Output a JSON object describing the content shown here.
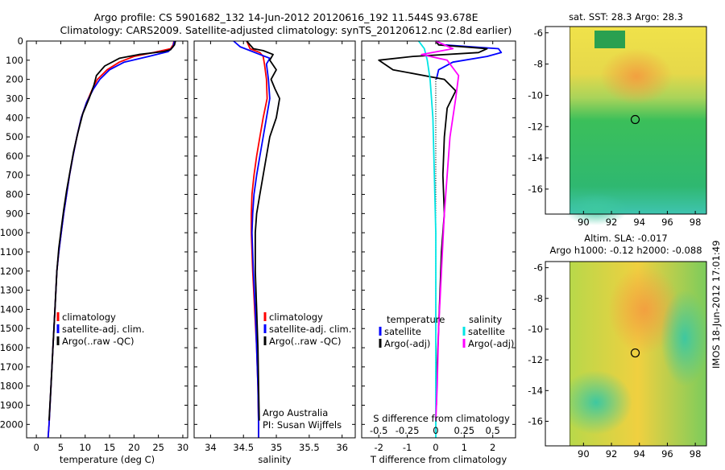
{
  "title_line1": "Argo profile: CS 5901682_132 14-Jun-2012 20120616_192 11.544S 93.678E",
  "title_line2": "Climatology: CARS2009. Satellite-adjusted climatology: synTS_20120612.nc (2.8d earlier)",
  "footer_vertical": "IMOS 18-Jun-2012 17:01:49",
  "colors": {
    "climatology": "#ff0000",
    "satellite": "#0000ff",
    "argo": "#000000",
    "sat_salinity": "#00e5e5",
    "argo_adj_salinity": "#ff00ff"
  },
  "chart_data": [
    {
      "type": "line",
      "xlabel": "temperature (deg C)",
      "xlim": [
        -2,
        31
      ],
      "xticks": [
        0,
        5,
        10,
        15,
        20,
        25,
        30
      ],
      "ylim": [
        2070,
        0
      ],
      "yticks": [
        0,
        100,
        200,
        300,
        400,
        500,
        600,
        700,
        800,
        900,
        1000,
        1100,
        1200,
        1300,
        1400,
        1500,
        1600,
        1700,
        1800,
        1900,
        2000
      ],
      "legend": [
        "climatology",
        "satellite-adj. clim.",
        "Argo(..raw -QC)"
      ],
      "series": [
        {
          "name": "climatology",
          "color": "#ff0000",
          "points": [
            [
              28.2,
              0
            ],
            [
              28.0,
              20
            ],
            [
              27.5,
              40
            ],
            [
              24,
              60
            ],
            [
              20,
              80
            ],
            [
              17,
              110
            ],
            [
              14.5,
              150
            ],
            [
              12.5,
              200
            ],
            [
              11.5,
              250
            ],
            [
              10.3,
              320
            ],
            [
              9.2,
              400
            ],
            [
              8.3,
              500
            ],
            [
              7.5,
              600
            ],
            [
              6.8,
              700
            ],
            [
              6.2,
              800
            ],
            [
              5.6,
              900
            ],
            [
              5.1,
              1000
            ],
            [
              4.6,
              1100
            ],
            [
              4.2,
              1200
            ],
            [
              3.8,
              1400
            ],
            [
              3.4,
              1600
            ],
            [
              3.0,
              1800
            ],
            [
              2.6,
              2000
            ],
            [
              2.4,
              2070
            ]
          ]
        },
        {
          "name": "satellite-adj. clim.",
          "color": "#0000ff",
          "points": [
            [
              28.3,
              0
            ],
            [
              28.0,
              30
            ],
            [
              27,
              55
            ],
            [
              23,
              80
            ],
            [
              18,
              110
            ],
            [
              15,
              150
            ],
            [
              13,
              200
            ],
            [
              11.7,
              250
            ],
            [
              10.3,
              320
            ],
            [
              9.2,
              400
            ],
            [
              8.3,
              500
            ],
            [
              7.5,
              600
            ],
            [
              6.8,
              700
            ],
            [
              6.2,
              800
            ],
            [
              5.6,
              900
            ],
            [
              5.1,
              1000
            ],
            [
              4.6,
              1100
            ],
            [
              4.2,
              1200
            ],
            [
              3.8,
              1400
            ],
            [
              3.4,
              1600
            ],
            [
              3.0,
              1800
            ],
            [
              2.6,
              2000
            ],
            [
              2.4,
              2070
            ]
          ]
        },
        {
          "name": "Argo(..raw -QC)",
          "color": "#000000",
          "points": [
            [
              28.5,
              0
            ],
            [
              28.3,
              20
            ],
            [
              27.5,
              45
            ],
            [
              26,
              55
            ],
            [
              21,
              70
            ],
            [
              17,
              90
            ],
            [
              14,
              130
            ],
            [
              12.3,
              180
            ],
            [
              11.8,
              230
            ],
            [
              10.8,
              300
            ],
            [
              9.5,
              380
            ],
            [
              8.5,
              480
            ],
            [
              7.6,
              580
            ],
            [
              6.9,
              680
            ],
            [
              6.2,
              780
            ],
            [
              5.6,
              880
            ],
            [
              5.1,
              980
            ],
            [
              4.6,
              1080
            ],
            [
              4.2,
              1200
            ],
            [
              3.8,
              1400
            ],
            [
              3.4,
              1600
            ],
            [
              3.0,
              1800
            ],
            [
              2.6,
              1980
            ]
          ]
        }
      ]
    },
    {
      "type": "line",
      "xlabel": "salinity",
      "xlim": [
        33.75,
        36.2
      ],
      "xticks": [
        34,
        34.5,
        35,
        35.5,
        36
      ],
      "ylim": [
        2070,
        0
      ],
      "legend": [
        "climatology",
        "satellite-adj. clim.",
        "Argo(..raw -QC)"
      ],
      "annotations": [
        "Argo Australia",
        "PI: Susan Wijffels"
      ],
      "series": [
        {
          "name": "climatology",
          "color": "#ff0000",
          "points": [
            [
              34.55,
              0
            ],
            [
              34.6,
              40
            ],
            [
              34.75,
              60
            ],
            [
              34.8,
              80
            ],
            [
              34.82,
              120
            ],
            [
              34.85,
              200
            ],
            [
              34.86,
              300
            ],
            [
              34.8,
              400
            ],
            [
              34.75,
              500
            ],
            [
              34.7,
              600
            ],
            [
              34.66,
              700
            ],
            [
              34.63,
              800
            ],
            [
              34.62,
              900
            ],
            [
              34.62,
              1000
            ],
            [
              34.64,
              1200
            ],
            [
              34.67,
              1400
            ],
            [
              34.7,
              1600
            ],
            [
              34.72,
              1800
            ],
            [
              34.73,
              2000
            ],
            [
              34.73,
              2070
            ]
          ]
        },
        {
          "name": "satellite-adj. clim.",
          "color": "#0000ff",
          "points": [
            [
              34.35,
              0
            ],
            [
              34.45,
              30
            ],
            [
              34.6,
              50
            ],
            [
              34.75,
              70
            ],
            [
              34.9,
              90
            ],
            [
              34.85,
              120
            ],
            [
              34.88,
              200
            ],
            [
              34.9,
              300
            ],
            [
              34.85,
              400
            ],
            [
              34.8,
              500
            ],
            [
              34.75,
              600
            ],
            [
              34.7,
              700
            ],
            [
              34.66,
              800
            ],
            [
              34.64,
              900
            ],
            [
              34.63,
              1000
            ],
            [
              34.65,
              1200
            ],
            [
              34.68,
              1400
            ],
            [
              34.7,
              1600
            ],
            [
              34.72,
              1800
            ],
            [
              34.73,
              2000
            ],
            [
              34.73,
              2070
            ]
          ]
        },
        {
          "name": "Argo(..raw -QC)",
          "color": "#000000",
          "points": [
            [
              34.55,
              0
            ],
            [
              34.65,
              40
            ],
            [
              34.8,
              50
            ],
            [
              34.95,
              70
            ],
            [
              34.9,
              100
            ],
            [
              35.0,
              150
            ],
            [
              34.92,
              200
            ],
            [
              34.98,
              250
            ],
            [
              35.05,
              300
            ],
            [
              35.0,
              400
            ],
            [
              34.9,
              500
            ],
            [
              34.85,
              600
            ],
            [
              34.8,
              700
            ],
            [
              34.75,
              800
            ],
            [
              34.7,
              900
            ],
            [
              34.68,
              1000
            ],
            [
              34.68,
              1200
            ],
            [
              34.7,
              1400
            ],
            [
              34.72,
              1600
            ],
            [
              34.73,
              1800
            ],
            [
              34.74,
              1980
            ]
          ]
        }
      ]
    },
    {
      "type": "line",
      "xlabel": "T difference from climatology",
      "xlabel_top": "S difference from climatology",
      "xlim": [
        -2.6,
        2.8
      ],
      "xticks": [
        -2,
        -1,
        0,
        1,
        2
      ],
      "s_ticks_labels": [
        "-0.5",
        "-0.25",
        "0",
        "0.25",
        "0.5"
      ],
      "s_ticks_positions": [
        -2,
        -1,
        0,
        1,
        2
      ],
      "ylim": [
        2070,
        0
      ],
      "legend_groups": [
        "temperature",
        "salinity"
      ],
      "legend": [
        "satellite",
        "Argo(-adj)",
        "satellite",
        "Argo(-adj)"
      ],
      "series": [
        {
          "name": "satellite",
          "group": "temperature",
          "color": "#0000ff",
          "points": [
            [
              0,
              0
            ],
            [
              0.3,
              20
            ],
            [
              2.2,
              40
            ],
            [
              2.3,
              60
            ],
            [
              1.8,
              80
            ],
            [
              0.6,
              110
            ],
            [
              0.1,
              150
            ],
            [
              0.02,
              200
            ]
          ]
        },
        {
          "name": "Argo(-adj)",
          "group": "temperature",
          "color": "#000000",
          "points": [
            [
              0,
              0
            ],
            [
              0.1,
              20
            ],
            [
              1.8,
              40
            ],
            [
              1.5,
              60
            ],
            [
              -0.8,
              80
            ],
            [
              -2.0,
              100
            ],
            [
              -1.5,
              150
            ],
            [
              0.3,
              200
            ],
            [
              0.7,
              260
            ],
            [
              0.4,
              350
            ],
            [
              0.3,
              500
            ],
            [
              0.25,
              700
            ],
            [
              0.3,
              900
            ],
            [
              0.2,
              1100
            ],
            [
              0.15,
              1300
            ],
            [
              0.1,
              1500
            ],
            [
              0.05,
              1700
            ],
            [
              0.02,
              1900
            ]
          ]
        },
        {
          "name": "satellite",
          "group": "salinity",
          "color": "#00e5e5",
          "points": [
            [
              -0.6,
              0
            ],
            [
              -0.4,
              40
            ],
            [
              -0.3,
              100
            ],
            [
              -0.2,
              200
            ],
            [
              -0.1,
              400
            ],
            [
              -0.05,
              700
            ],
            [
              0,
              1000
            ],
            [
              0,
              1500
            ],
            [
              0,
              2070
            ]
          ]
        },
        {
          "name": "Argo(-adj)",
          "group": "salinity",
          "color": "#ff00ff",
          "points": [
            [
              0,
              0
            ],
            [
              0.6,
              40
            ],
            [
              -0.5,
              70
            ],
            [
              0.4,
              100
            ],
            [
              0.8,
              180
            ],
            [
              0.7,
              300
            ],
            [
              0.5,
              500
            ],
            [
              0.4,
              700
            ],
            [
              0.3,
              900
            ],
            [
              0.2,
              1200
            ],
            [
              0.1,
              1500
            ],
            [
              0.05,
              1800
            ],
            [
              0,
              1980
            ]
          ]
        }
      ]
    },
    {
      "type": "heatmap",
      "title": "sat. SST: 28.3 Argo: 28.3",
      "xticks": [
        90,
        92,
        94,
        96,
        98
      ],
      "yticks": [
        -6,
        -8,
        -10,
        -12,
        -14,
        -16
      ],
      "xlim": [
        89,
        98.8
      ],
      "ylim": [
        -17.6,
        -5.6
      ],
      "marker": [
        93.7,
        -11.55
      ]
    },
    {
      "type": "heatmap",
      "title": "Altim. SLA: -0.017",
      "subtitle": "Argo h1000: -0.12 h2000: -0.088",
      "xticks": [
        90,
        92,
        94,
        96,
        98
      ],
      "yticks": [
        -6,
        -8,
        -10,
        -12,
        -14,
        -16
      ],
      "xlim": [
        89,
        98.8
      ],
      "ylim": [
        -17.6,
        -5.6
      ],
      "marker": [
        93.7,
        -11.55
      ]
    }
  ]
}
